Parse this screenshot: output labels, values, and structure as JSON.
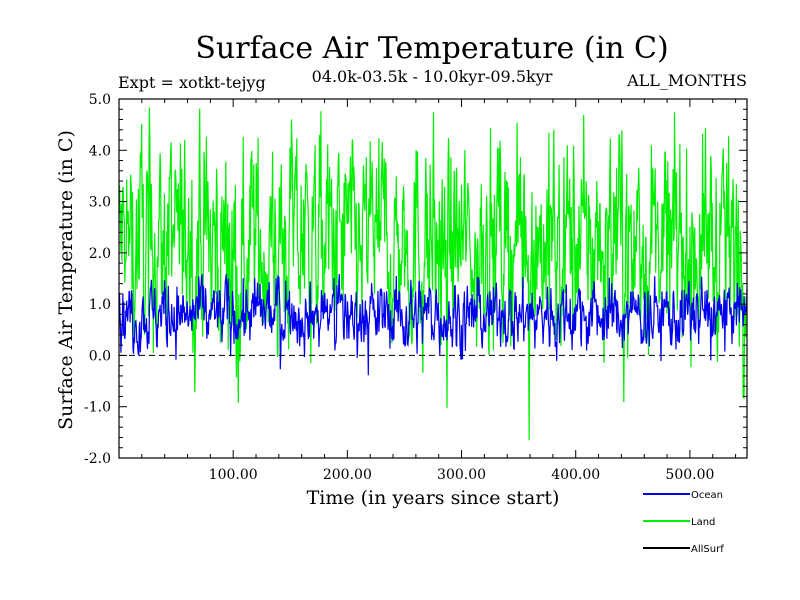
{
  "chart_data": {
    "type": "line",
    "title": "Surface Air Temperature (in C)",
    "expt_label": "Expt = xotkt-tejyg",
    "subtitle": "04.0k-03.5k - 10.0kyr-09.5kyr",
    "months_label": "ALL_MONTHS",
    "xlabel": "Time (in years since start)",
    "ylabel": "Surface Air Temperature (in C)",
    "xlim": [
      0,
      550
    ],
    "ylim": [
      -2.0,
      5.0
    ],
    "xticks": [
      100,
      200,
      300,
      400,
      500
    ],
    "xtick_labels": [
      "100.00",
      "200.00",
      "300.00",
      "400.00",
      "500.00"
    ],
    "yticks": [
      -2.0,
      -1.0,
      0.0,
      1.0,
      2.0,
      3.0,
      4.0,
      5.0
    ],
    "ytick_labels": [
      "-2.0",
      "-1.0",
      "0.0",
      "1.0",
      "2.0",
      "3.0",
      "4.0",
      "5.0"
    ],
    "zero_line": 0.0,
    "series": [
      {
        "name": "Land",
        "color": "#00ee00",
        "mean": 2.2,
        "range_low": -1.9,
        "range_high": 4.9,
        "typical_low": 0.0,
        "typical_high": 4.0
      },
      {
        "name": "Ocean",
        "color": "#0000ee",
        "mean": 0.8,
        "range_low": -0.5,
        "range_high": 1.6,
        "typical_low": 0.2,
        "typical_high": 1.4
      },
      {
        "name": "AllSurf",
        "color": "#000000"
      }
    ],
    "legend": [
      {
        "label": "Ocean",
        "color": "#0000ee"
      },
      {
        "label": "Land",
        "color": "#00ee00"
      },
      {
        "label": "AllSurf",
        "color": "#000000"
      }
    ],
    "legend_position": "bottom-right"
  }
}
